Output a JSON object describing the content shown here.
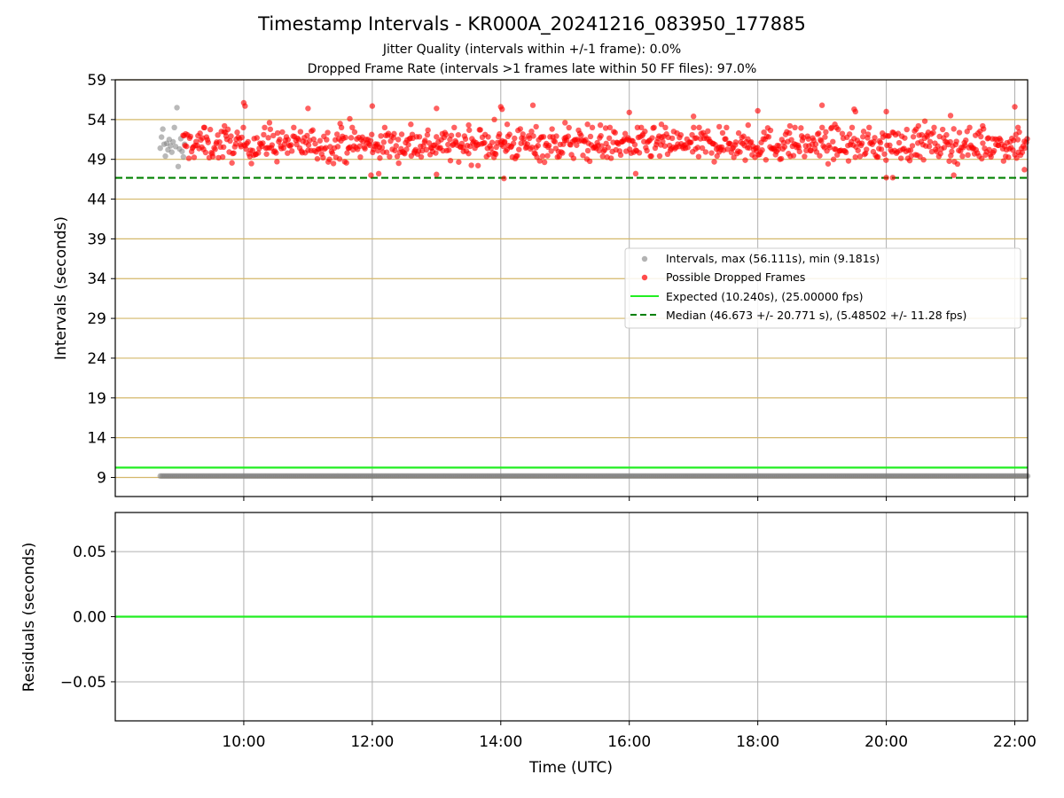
{
  "figure": {
    "title": "Timestamp Intervals - KR000A_20241216_083950_177885",
    "subtitle1": "Jitter Quality (intervals within +/-1 frame): 0.0%",
    "subtitle2": "Dropped Frame Rate (intervals >1 frames late within 50 FF files): 97.0%",
    "xlabel": "Time (UTC)"
  },
  "colors": {
    "intervals": "#808080",
    "dropped": "#ff0000",
    "expected": "#22ee22",
    "median": "#008000",
    "threshold_grid": "#d4b86a",
    "grid": "#b0b0b0"
  },
  "chart_data": [
    {
      "type": "scatter",
      "ylabel": "Intervals (seconds)",
      "x_unit": "hours UTC",
      "xlim": [
        8.0,
        22.2
      ],
      "ylim": [
        6.6,
        59
      ],
      "yticks": [
        9,
        14,
        19,
        24,
        29,
        34,
        39,
        44,
        49,
        54,
        59
      ],
      "xticks": [
        "10:00",
        "12:00",
        "14:00",
        "16:00",
        "18:00",
        "20:00",
        "22:00"
      ],
      "xtick_values": [
        10,
        12,
        14,
        16,
        18,
        20,
        22
      ],
      "grid": true,
      "legend_position": "center-right",
      "legend": [
        "Intervals, max (56.111s), min (9.181s)",
        "Possible Dropped Frames",
        "Expected (10.240s), (25.00000 fps)",
        "Median (46.673 +/- 20.771 s), (5.48502 +/- 11.28 fps)"
      ],
      "lines": {
        "expected": 10.24,
        "median": 46.673
      },
      "series": {
        "baseline": {
          "y": 9.181,
          "x_range": [
            8.7,
            22.2
          ]
        },
        "intervals_early": [
          [
            8.7,
            50.4
          ],
          [
            8.72,
            51.8
          ],
          [
            8.74,
            52.8
          ],
          [
            8.76,
            50.9
          ],
          [
            8.78,
            49.4
          ],
          [
            8.8,
            51.0
          ],
          [
            8.82,
            50.2
          ],
          [
            8.84,
            51.5
          ],
          [
            8.86,
            50.7
          ],
          [
            8.88,
            49.9
          ],
          [
            8.9,
            51.2
          ],
          [
            8.92,
            53.0
          ],
          [
            8.94,
            50.6
          ],
          [
            8.96,
            55.5
          ],
          [
            8.98,
            48.1
          ],
          [
            9.0,
            50.3
          ],
          [
            9.02,
            51.6
          ],
          [
            9.04,
            50.0
          ],
          [
            9.06,
            49.3
          ],
          [
            9.08,
            50.9
          ]
        ],
        "dropped_summary": {
          "x_range": [
            9.05,
            22.2
          ],
          "y_range": [
            46.6,
            56.1
          ],
          "count": 900
        },
        "dropped_outliers": [
          [
            9.38,
            53.0
          ],
          [
            9.7,
            53.2
          ],
          [
            10.0,
            56.1
          ],
          [
            10.02,
            55.7
          ],
          [
            10.4,
            53.6
          ],
          [
            11.0,
            55.4
          ],
          [
            11.5,
            53.5
          ],
          [
            11.65,
            54.1
          ],
          [
            11.98,
            47.0
          ],
          [
            12.0,
            55.7
          ],
          [
            12.1,
            47.2
          ],
          [
            12.6,
            53.4
          ],
          [
            13.0,
            55.4
          ],
          [
            13.0,
            47.1
          ],
          [
            13.5,
            53.3
          ],
          [
            13.9,
            54.0
          ],
          [
            14.0,
            55.6
          ],
          [
            14.02,
            55.3
          ],
          [
            14.05,
            46.6
          ],
          [
            14.1,
            53.4
          ],
          [
            14.5,
            55.8
          ],
          [
            14.55,
            53.1
          ],
          [
            15.0,
            53.6
          ],
          [
            15.35,
            53.4
          ],
          [
            15.55,
            53.3
          ],
          [
            16.0,
            54.9
          ],
          [
            16.1,
            47.2
          ],
          [
            16.5,
            53.4
          ],
          [
            17.0,
            54.4
          ],
          [
            17.4,
            53.1
          ],
          [
            17.85,
            53.3
          ],
          [
            18.0,
            55.1
          ],
          [
            18.5,
            53.2
          ],
          [
            19.0,
            55.8
          ],
          [
            19.2,
            53.4
          ],
          [
            19.5,
            55.3
          ],
          [
            19.52,
            55.0
          ],
          [
            20.0,
            55.0
          ],
          [
            20.0,
            46.7
          ],
          [
            20.1,
            46.7
          ],
          [
            20.5,
            53.2
          ],
          [
            20.6,
            53.8
          ],
          [
            21.0,
            54.5
          ],
          [
            21.05,
            47.0
          ],
          [
            21.5,
            53.2
          ],
          [
            22.0,
            55.6
          ],
          [
            22.05,
            53.0
          ],
          [
            22.15,
            47.7
          ]
        ]
      }
    },
    {
      "type": "line",
      "ylabel": "Residuals (seconds)",
      "xlim": [
        8.0,
        22.2
      ],
      "ylim": [
        -0.08,
        0.08
      ],
      "yticks": [
        "0.05",
        "0.00",
        "−0.05"
      ],
      "ytick_values": [
        0.05,
        0.0,
        -0.05
      ],
      "grid": true,
      "series": [
        {
          "y": 0.0,
          "x_range": [
            8.0,
            22.2
          ]
        }
      ]
    }
  ]
}
